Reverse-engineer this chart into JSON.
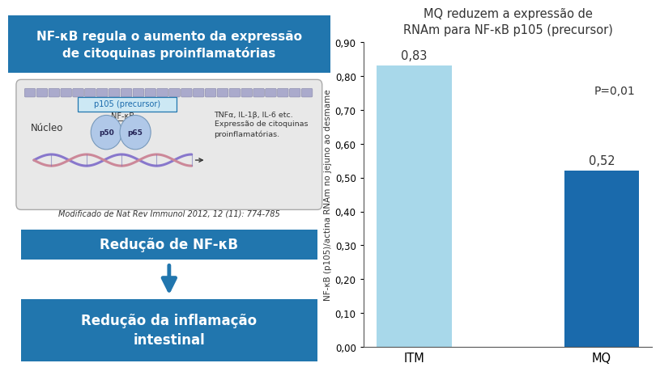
{
  "title_left": "NF-κB regula o aumento da expressão\nde citoquinas proinflamatórias",
  "title_left_bg": "#2176AE",
  "title_left_color": "#ffffff",
  "box1_text": "Redução de NF-κB",
  "box1_bg": "#2176AE",
  "box1_color": "#ffffff",
  "box2_text": "Redução da inflamação\nintestinal",
  "box2_bg": "#2176AE",
  "box2_color": "#ffffff",
  "arrow_color": "#2176AE",
  "citation_text": "Modificado de Nat Rev Immunol 2012, 12 (11): 774-785",
  "chart_title": "MQ reduzem a expressão de\nRNAm para NF-κB p105 (precursor)",
  "categories": [
    "ITM",
    "MQ"
  ],
  "values": [
    0.83,
    0.52
  ],
  "bar_colors": [
    "#a8d8ea",
    "#1a6aac"
  ],
  "ylabel": "NF-κB (p105)/actina RNAm no jejuno ao desmame",
  "ylim": [
    0.0,
    0.9
  ],
  "yticks": [
    0.0,
    0.1,
    0.2,
    0.3,
    0.4,
    0.5,
    0.6,
    0.7,
    0.8,
    0.9
  ],
  "value_labels": [
    "0,83",
    "0,52"
  ],
  "p_value_text": "P=0,01",
  "background_color": "#ffffff",
  "cell_bg": "#e8e8e8",
  "cell_edge": "#aaaaaa",
  "membrane_color": "#aaaacc",
  "membrane_edge": "#8888aa",
  "p105_bg": "#cce8f4",
  "p105_edge": "#2176AE",
  "p50_bg": "#b0c8e8",
  "p50_edge": "#7799bb",
  "dna1_color": "#8877cc",
  "dna2_color": "#cc8899",
  "nucleo_text": "Núcleo",
  "p105_label": "p105 (precursor)",
  "nfkb_label": "NF-κB",
  "p50_label": "p50",
  "p65_label": "p65",
  "cytokine_text": "TNFα, IL-1β, IL-6 etc.\nExpressão de citoquinas\nproinflamatórias."
}
